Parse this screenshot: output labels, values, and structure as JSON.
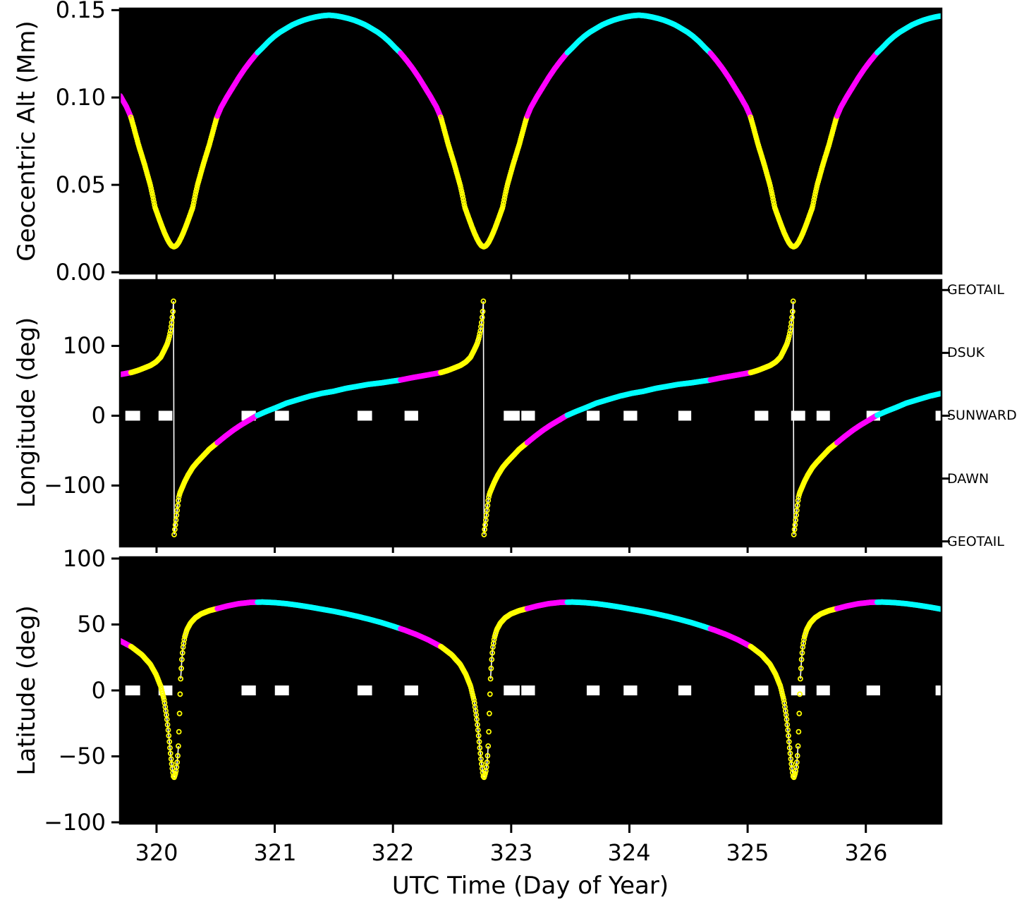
{
  "chart_data": {
    "type": "scatter",
    "description": "Three stacked time-series panels of spacecraft geocentric altitude, longitude and latitude vs UTC day of year, drawn as dense hollow-circle markers colored by orbit phase on black panels.",
    "xlabel": "UTC Time (Day of Year)",
    "xlim": [
      319.69,
      326.64
    ],
    "xticks": [
      {
        "label": "320",
        "value": 320
      },
      {
        "label": "321",
        "value": 321
      },
      {
        "label": "322",
        "value": 322
      },
      {
        "label": "323",
        "value": 323
      },
      {
        "label": "324",
        "value": 324
      },
      {
        "label": "325",
        "value": 325
      },
      {
        "label": "326",
        "value": 326
      }
    ],
    "orbit": {
      "perigee_days": [
        320.147,
        322.768,
        325.389
      ],
      "period_days": 2.621,
      "sample_step_days": 0.005,
      "altitude_min_mm": 0.0145,
      "altitude_max_mm": 0.147
    },
    "colors": {
      "near_perigee": "#ffff00",
      "mid": "#ff00ff",
      "far": "#00ffff",
      "segment_thresholds_days": [
        0.365,
        0.705
      ],
      "core_line": "#ffffff",
      "zero_dash": "#ffffff",
      "panel_background": "#000000",
      "figure_background": "#ffffff"
    },
    "zero_marker_dashes_days": [
      [
        319.736,
        319.861
      ],
      [
        320.017,
        320.134
      ],
      [
        320.719,
        320.84
      ],
      [
        321.001,
        321.12
      ],
      [
        321.7,
        321.823
      ],
      [
        322.098,
        322.213
      ],
      [
        322.937,
        323.072
      ],
      [
        323.086,
        323.201
      ],
      [
        323.639,
        323.748
      ],
      [
        323.951,
        324.066
      ],
      [
        324.414,
        324.523
      ],
      [
        325.06,
        325.175
      ],
      [
        325.368,
        325.487
      ],
      [
        325.583,
        325.696
      ],
      [
        326.006,
        326.121
      ],
      [
        326.59,
        326.64
      ]
    ],
    "panels": [
      {
        "name": "altitude",
        "ylabel": "Geocentric Alt (Mm)",
        "ylim": [
          -0.00081,
          0.15095
        ],
        "yticks": [
          {
            "label": "0.15",
            "value": 0.15
          },
          {
            "label": "0.10",
            "value": 0.1
          },
          {
            "label": "0.05",
            "value": 0.05
          },
          {
            "label": "0.00",
            "value": 0.0
          }
        ],
        "profile_abs_dt": [
          [
            0,
            0.0145
          ],
          [
            0.02,
            0.0152
          ],
          [
            0.04,
            0.017
          ],
          [
            0.06,
            0.0196
          ],
          [
            0.08,
            0.0226
          ],
          [
            0.1,
            0.026
          ],
          [
            0.13,
            0.0315
          ],
          [
            0.16,
            0.0372
          ],
          [
            0.18,
            0.044
          ],
          [
            0.2,
            0.05
          ],
          [
            0.25,
            0.062
          ],
          [
            0.3,
            0.073
          ],
          [
            0.35,
            0.0855
          ],
          [
            0.365,
            0.089
          ],
          [
            0.4,
            0.0945
          ],
          [
            0.45,
            0.1005
          ],
          [
            0.5,
            0.106
          ],
          [
            0.55,
            0.1115
          ],
          [
            0.6,
            0.1165
          ],
          [
            0.65,
            0.121
          ],
          [
            0.705,
            0.1255
          ],
          [
            0.75,
            0.1285
          ],
          [
            0.8,
            0.132
          ],
          [
            0.85,
            0.135
          ],
          [
            0.9,
            0.1375
          ],
          [
            0.95,
            0.1395
          ],
          [
            1.0,
            0.1415
          ],
          [
            1.05,
            0.143
          ],
          [
            1.1,
            0.1443
          ],
          [
            1.15,
            0.1453
          ],
          [
            1.2,
            0.1461
          ],
          [
            1.25,
            0.1467
          ],
          [
            1.3105,
            0.1471
          ]
        ]
      },
      {
        "name": "longitude",
        "ylabel": "Longitude (deg)",
        "ylim": [
          -187.4,
          194.4
        ],
        "yticks": [
          {
            "label": "100",
            "value": 100
          },
          {
            "label": "0",
            "value": 0
          },
          {
            "label": "−100",
            "value": -100
          }
        ],
        "right_axis": {
          "labels": [
            {
              "label": "GEOTAIL",
              "value": 180
            },
            {
              "label": "DSUK",
              "value": 90
            },
            {
              "label": "SUNWARD",
              "value": 0
            },
            {
              "label": "DAWN",
              "value": -90
            },
            {
              "label": "GEOTAIL",
              "value": -180
            }
          ]
        },
        "profile_dt": [
          [
            0.002,
            -171
          ],
          [
            0.006,
            -165
          ],
          [
            0.012,
            -157
          ],
          [
            0.02,
            -146
          ],
          [
            0.03,
            -132
          ],
          [
            0.04,
            -118
          ],
          [
            0.05,
            -111
          ],
          [
            0.07,
            -103
          ],
          [
            0.09,
            -95
          ],
          [
            0.12,
            -85
          ],
          [
            0.16,
            -74
          ],
          [
            0.2,
            -66
          ],
          [
            0.25,
            -57
          ],
          [
            0.3,
            -48
          ],
          [
            0.365,
            -39
          ],
          [
            0.43,
            -30
          ],
          [
            0.5,
            -21
          ],
          [
            0.57,
            -13
          ],
          [
            0.64,
            -6
          ],
          [
            0.699,
            0
          ],
          [
            0.78,
            6
          ],
          [
            0.87,
            12
          ],
          [
            0.953,
            18
          ],
          [
            1.05,
            23
          ],
          [
            1.15,
            28
          ],
          [
            1.25,
            32
          ],
          [
            1.353,
            35
          ],
          [
            1.45,
            39
          ],
          [
            1.55,
            42
          ],
          [
            1.65,
            45
          ],
          [
            1.753,
            47
          ],
          [
            1.83,
            49
          ],
          [
            1.913,
            51
          ],
          [
            2.0,
            54
          ],
          [
            2.1,
            57
          ],
          [
            2.2,
            60
          ],
          [
            2.263,
            62
          ],
          [
            2.32,
            65
          ],
          [
            2.38,
            69
          ],
          [
            2.423,
            72
          ],
          [
            2.47,
            77
          ],
          [
            2.51,
            84
          ],
          [
            2.543,
            95
          ],
          [
            2.565,
            103
          ],
          [
            2.581,
            112
          ],
          [
            2.593,
            122
          ],
          [
            2.603,
            134
          ],
          [
            2.611,
            146
          ],
          [
            2.616,
            157
          ],
          [
            2.619,
            171
          ]
        ]
      },
      {
        "name": "latitude",
        "ylabel": "Latitude (deg)",
        "ylim": [
          -101.07,
          101.07
        ],
        "yticks": [
          {
            "label": "100",
            "value": 100
          },
          {
            "label": "50",
            "value": 50
          },
          {
            "label": "0",
            "value": 0
          },
          {
            "label": "−50",
            "value": -50
          },
          {
            "label": "−100",
            "value": -100
          }
        ],
        "profile_dt": [
          [
            0.002,
            -66
          ],
          [
            0.01,
            -64
          ],
          [
            0.018,
            -61
          ],
          [
            0.026,
            -56
          ],
          [
            0.034,
            -48
          ],
          [
            0.04,
            -38
          ],
          [
            0.046,
            -22
          ],
          [
            0.052,
            -4
          ],
          [
            0.058,
            10
          ],
          [
            0.066,
            22
          ],
          [
            0.076,
            32
          ],
          [
            0.09,
            40
          ],
          [
            0.11,
            46
          ],
          [
            0.14,
            51
          ],
          [
            0.18,
            55
          ],
          [
            0.23,
            58
          ],
          [
            0.3,
            60.5
          ],
          [
            0.365,
            62
          ],
          [
            0.45,
            64
          ],
          [
            0.55,
            65.8
          ],
          [
            0.65,
            66.8
          ],
          [
            0.75,
            67
          ],
          [
            0.85,
            66.6
          ],
          [
            0.95,
            65.8
          ],
          [
            1.05,
            64.6
          ],
          [
            1.15,
            63.2
          ],
          [
            1.25,
            61.6
          ],
          [
            1.353,
            60
          ],
          [
            1.45,
            58.2
          ],
          [
            1.55,
            56.2
          ],
          [
            1.65,
            54
          ],
          [
            1.753,
            51.5
          ],
          [
            1.85,
            48.8
          ],
          [
            1.95,
            45.8
          ],
          [
            2.05,
            42.4
          ],
          [
            2.15,
            38.4
          ],
          [
            2.263,
            33
          ],
          [
            2.35,
            27
          ],
          [
            2.42,
            20
          ],
          [
            2.47,
            12
          ],
          [
            2.51,
            3
          ],
          [
            2.54,
            -8
          ],
          [
            2.56,
            -20
          ],
          [
            2.575,
            -32
          ],
          [
            2.588,
            -44
          ],
          [
            2.6,
            -54
          ],
          [
            2.61,
            -61
          ],
          [
            2.619,
            -66
          ]
        ]
      }
    ]
  }
}
